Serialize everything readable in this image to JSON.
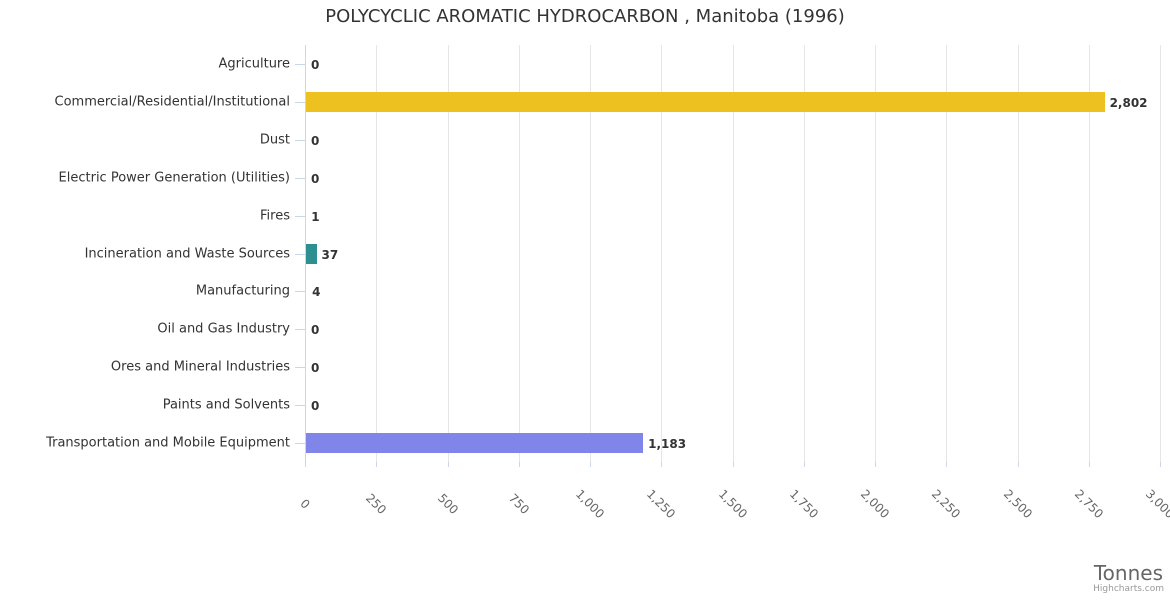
{
  "title": "POLYCYCLIC AROMATIC HYDROCARBON , Manitoba (1996)",
  "credit": "Highcharts.com",
  "chart_data": {
    "type": "bar",
    "orientation": "horizontal",
    "title": "POLYCYCLIC AROMATIC HYDROCARBON , Manitoba (1996)",
    "xlabel": "Tonnes",
    "ylabel": "",
    "xlim": [
      0,
      3000
    ],
    "grid": true,
    "legend": false,
    "categories": [
      "Agriculture",
      "Commercial/Residential/Institutional",
      "Dust",
      "Electric Power Generation (Utilities)",
      "Fires",
      "Incineration and Waste Sources",
      "Manufacturing",
      "Oil and Gas Industry",
      "Ores and Mineral Industries",
      "Paints and Solvents",
      "Transportation and Mobile Equipment"
    ],
    "values": [
      0,
      2802,
      0,
      0,
      1,
      37,
      4,
      0,
      0,
      0,
      1183
    ],
    "value_labels": [
      "0",
      "2,802",
      "0",
      "0",
      "1",
      "37",
      "4",
      "0",
      "0",
      "0",
      "1,183"
    ],
    "bar_colors": [
      null,
      "#EDC120",
      null,
      null,
      null,
      "#2B908F",
      null,
      null,
      null,
      null,
      "#8085E9"
    ],
    "xticks": [
      0,
      250,
      500,
      750,
      1000,
      1250,
      1500,
      1750,
      2000,
      2250,
      2500,
      2750,
      3000
    ],
    "xtick_labels": [
      "0",
      "250",
      "500",
      "750",
      "1,000",
      "1,250",
      "1,500",
      "1,750",
      "2,000",
      "2,250",
      "2,500",
      "2,750",
      "3,000"
    ]
  },
  "colors": {
    "grid_line": "#e6e6e6",
    "axis_line": "#ccd6eb",
    "title_text": "#333333",
    "category_text": "#333333",
    "value_text": "#333333",
    "tick_text": "#666666",
    "axis_title_text": "#666666",
    "credit_text": "#999999",
    "background": "#ffffff"
  }
}
